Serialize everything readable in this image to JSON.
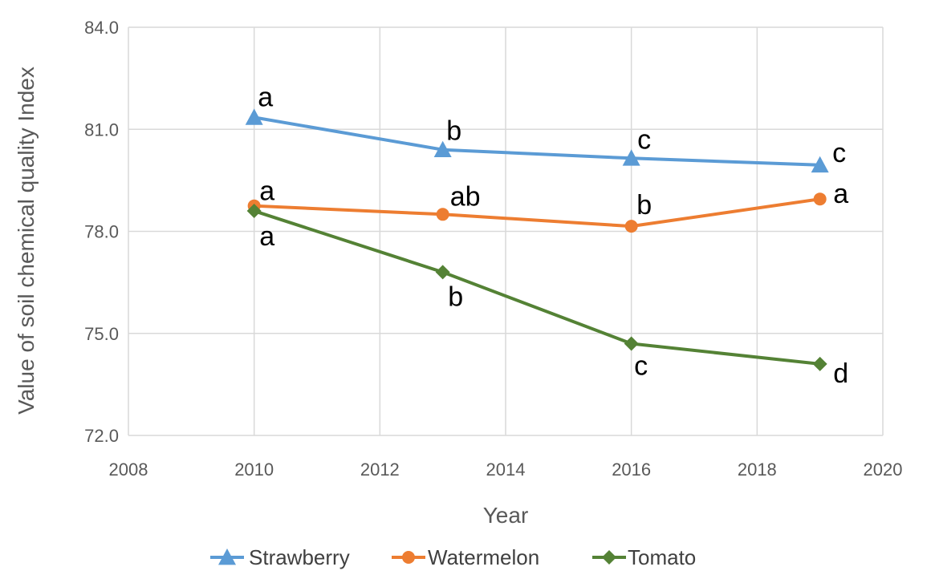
{
  "chart_data": {
    "type": "line",
    "title": "",
    "xlabel": "Year",
    "ylabel": "Value of soil chemical quality Index",
    "xlim": [
      2008,
      2020
    ],
    "ylim": [
      72.0,
      84.0
    ],
    "x_ticks": [
      "2008",
      "2010",
      "2012",
      "2014",
      "2016",
      "2018",
      "2020"
    ],
    "y_ticks": [
      "72.0",
      "75.0",
      "78.0",
      "81.0",
      "84.0"
    ],
    "grid": true,
    "legend_position": "bottom",
    "series": [
      {
        "name": "Strawberry",
        "color": "#5b9bd5",
        "marker": "triangle",
        "x": [
          2010,
          2013,
          2016,
          2019
        ],
        "y": [
          81.35,
          80.4,
          80.15,
          79.95
        ],
        "labels": [
          "a",
          "b",
          "c",
          "c"
        ]
      },
      {
        "name": "Watermelon",
        "color": "#ed7d31",
        "marker": "circle",
        "x": [
          2010,
          2013,
          2016,
          2019
        ],
        "y": [
          78.75,
          78.5,
          78.15,
          78.95
        ],
        "labels": [
          "a",
          "ab",
          "b",
          "a"
        ]
      },
      {
        "name": "Tomato",
        "color": "#548235",
        "marker": "diamond",
        "x": [
          2010,
          2013,
          2016,
          2019
        ],
        "y": [
          78.6,
          76.8,
          74.7,
          74.1
        ],
        "labels": [
          "a",
          "b",
          "c",
          "d"
        ]
      }
    ]
  }
}
